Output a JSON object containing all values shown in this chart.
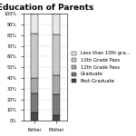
{
  "title": "Education of Parents",
  "categories": [
    "Father",
    "Mother"
  ],
  "legend_labels": [
    "Post-Graduate",
    "Graduate",
    "12th Grade Pass",
    "10th Grade Pass",
    "Less than 10th gra..."
  ],
  "colors": [
    "#4a4a4a",
    "#7a7a7a",
    "#a8a8a8",
    "#c8c8c8",
    "#e8e8e8"
  ],
  "father_values": [
    8,
    18,
    14,
    42,
    18
  ],
  "mother_values": [
    5,
    20,
    18,
    38,
    19
  ],
  "ylabel_ticks": [
    "0%",
    "10%",
    "20%",
    "30%",
    "40%",
    "50%",
    "60%",
    "70%",
    "80%",
    "90%",
    "100%"
  ],
  "title_fontsize": 6.5,
  "legend_fontsize": 3.8,
  "tick_fontsize": 3.5,
  "label_fontsize": 4.0
}
